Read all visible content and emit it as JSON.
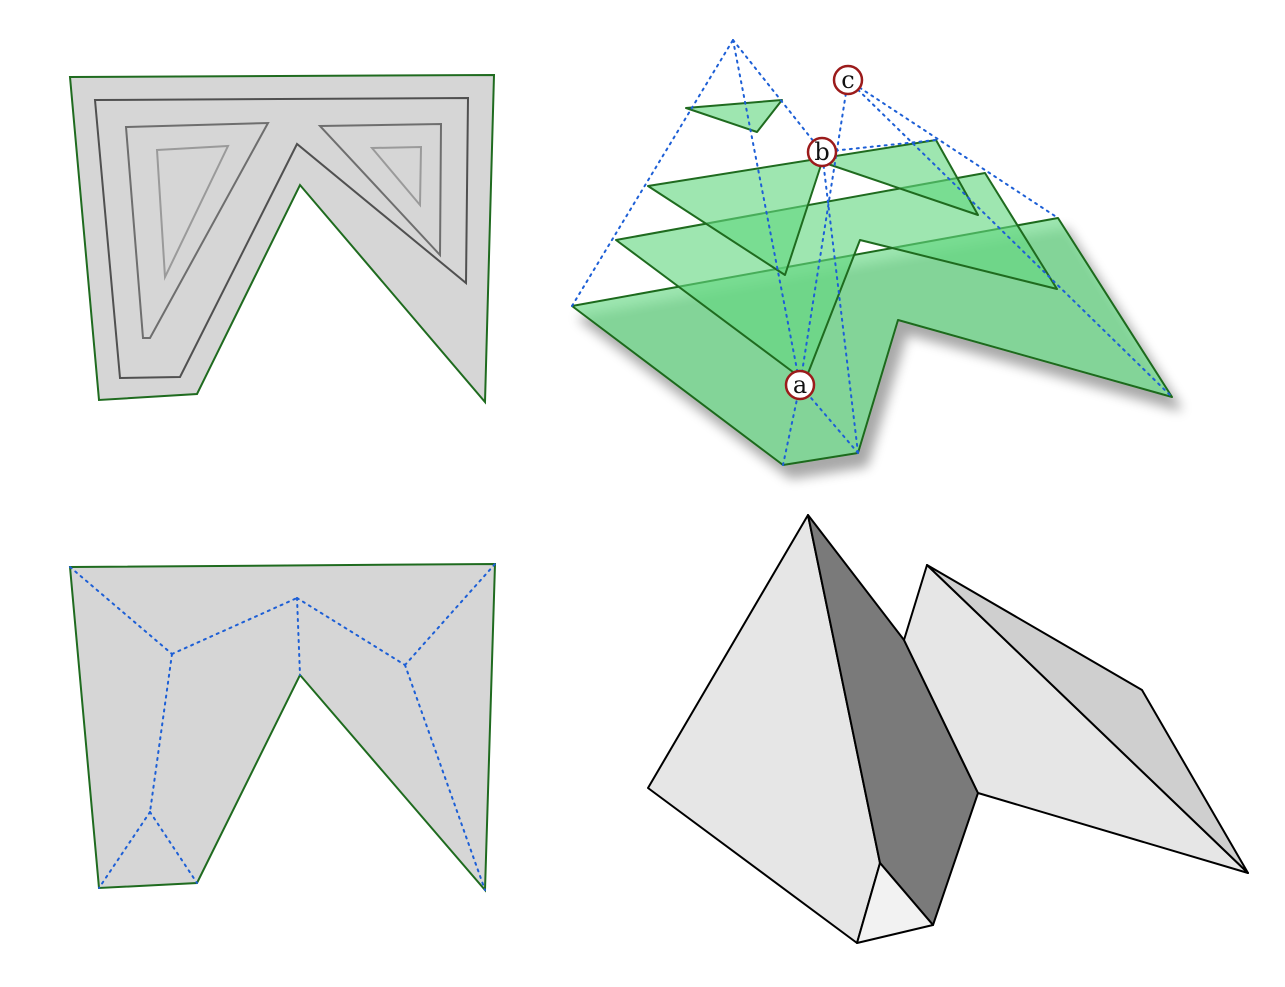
{
  "panels": {
    "top_left": {
      "description_name": "offset-curves"
    },
    "top_right": {
      "description_name": "sweep-planes"
    },
    "bottom_left": {
      "description_name": "straight-skeleton"
    },
    "bottom_right": {
      "description_name": "roof-model"
    }
  },
  "markers": {
    "a": "a",
    "b": "b",
    "c": "c"
  },
  "colors": {
    "polygon_fill": "#d6d6d6",
    "polygon_edge": "#1f6b1f",
    "sheet_fill": "#62d680",
    "skeleton": "#1d5fd6",
    "marker_ring": "#9b1b1b",
    "roof_light": "#e6e6e6",
    "roof_mid": "#cfcfcf",
    "roof_dark": "#7a7a7a"
  }
}
